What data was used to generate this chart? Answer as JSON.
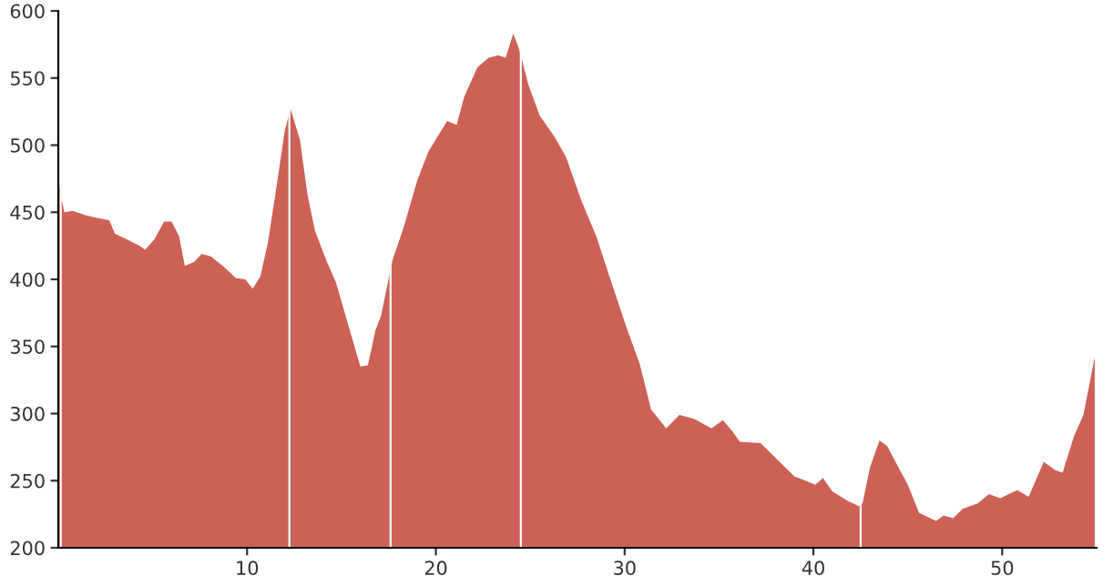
{
  "chart_data": {
    "type": "area",
    "color": "#cd6155",
    "x": [
      0,
      0.19,
      0.32,
      0.77,
      1.4,
      2.0,
      2.7,
      3.0,
      3.6,
      4.3,
      4.6,
      5.1,
      5.6,
      6.0,
      6.4,
      6.7,
      7.2,
      7.6,
      8.1,
      8.8,
      9.4,
      9.9,
      10.3,
      10.7,
      11.1,
      11.6,
      12.0,
      12.3,
      12.8,
      13.2,
      13.6,
      14.2,
      14.7,
      15.3,
      16.0,
      16.4,
      16.8,
      17.1,
      17.7,
      18.3,
      19.0,
      19.6,
      20.6,
      21.1,
      21.5,
      22.2,
      22.8,
      23.3,
      23.7,
      24.1,
      24.4,
      24.9,
      25.5,
      26.3,
      26.9,
      27.7,
      28.5,
      29.2,
      30.1,
      30.8,
      31.4,
      32.2,
      32.9,
      33.7,
      34.6,
      35.2,
      35.7,
      36.1,
      37.2,
      38.5,
      39.0,
      39.4,
      40.1,
      40.5,
      41.0,
      41.8,
      42.4,
      42.6,
      43.0,
      43.5,
      43.9,
      44.5,
      45.0,
      45.6,
      46.5,
      46.9,
      47.4,
      47.9,
      48.7,
      49.3,
      49.9,
      50.8,
      51.4,
      52.2,
      52.8,
      53.2,
      53.8,
      54.3,
      54.9
    ],
    "values": [
      475,
      459,
      450,
      451,
      448,
      446,
      444,
      434,
      430,
      425,
      422,
      430,
      443,
      443,
      432,
      410,
      413,
      419,
      417,
      409,
      401,
      400,
      393,
      402,
      427,
      473,
      511,
      527,
      504,
      463,
      436,
      414,
      398,
      369,
      335,
      336,
      362,
      373,
      414,
      439,
      473,
      495,
      518,
      515,
      536,
      558,
      565,
      567,
      565,
      583,
      572,
      545,
      522,
      506,
      491,
      459,
      432,
      402,
      364,
      337,
      303,
      289,
      299,
      296,
      289,
      295,
      287,
      279,
      278,
      260,
      253,
      251,
      247,
      252,
      242,
      235,
      231,
      233,
      260,
      280,
      276,
      260,
      247,
      226,
      220,
      224,
      222,
      229,
      233,
      240,
      237,
      243,
      238,
      264,
      258,
      256,
      283,
      299,
      342
    ],
    "xlim": [
      0,
      55
    ],
    "ylim": [
      200,
      600
    ],
    "xticks": [
      10,
      20,
      30,
      40,
      50
    ],
    "yticks": [
      200,
      250,
      300,
      350,
      400,
      450,
      500,
      550,
      600
    ],
    "grid": false,
    "legend": false,
    "ref_lines": [
      {
        "axis": "x",
        "value": 0.13,
        "color": "#ffffff"
      },
      {
        "axis": "x",
        "value": 12.24,
        "color": "#ffffff"
      },
      {
        "axis": "x",
        "value": 17.6,
        "color": "#ffffff"
      },
      {
        "axis": "x",
        "value": 24.5,
        "color": "#ffffff"
      },
      {
        "axis": "x",
        "value": 42.5,
        "color": "#ffffff"
      }
    ]
  }
}
